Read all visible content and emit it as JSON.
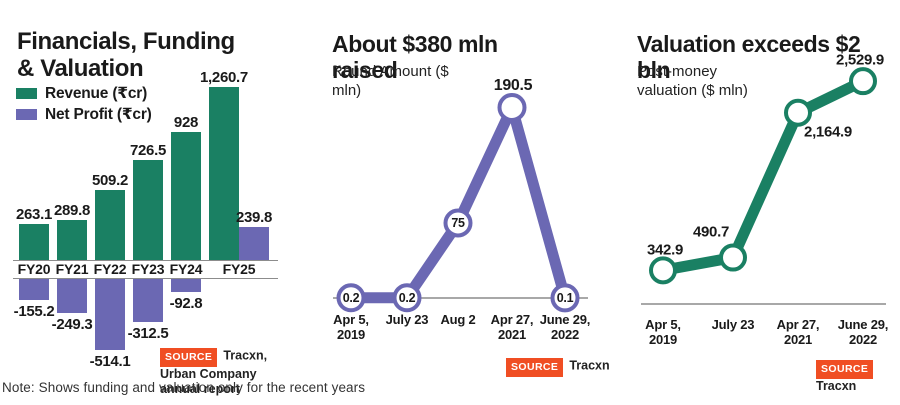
{
  "source_badge_label": "SOURCE",
  "note": "Note: Shows funding and valuation only for the recent years",
  "colors": {
    "revenue_green": "#1a8063",
    "profit_purple": "#6b68b3",
    "source_orange": "#f04e23",
    "axis_gray": "#8c8c8c",
    "text_dark": "#1a1a1a"
  },
  "panels": [
    {
      "title": "Financials, Funding & Valuation",
      "legend": [
        {
          "label": "Revenue (₹cr)",
          "color": "#1a8063"
        },
        {
          "label": "Net Profit (₹cr)",
          "color": "#6b68b3"
        }
      ],
      "source": "Tracxn, Urban Company annual report"
    },
    {
      "title": "About $380 mln raised",
      "subtitle": "Round Amount ($ mln)",
      "source": "Tracxn"
    },
    {
      "title": "Valuation exceeds $2 bln",
      "subtitle": "Post-money valuation ($ mln)",
      "source": "Tracxn"
    }
  ],
  "chart_data": [
    {
      "type": "bar",
      "title": "Financials, Funding & Valuation",
      "categories": [
        "FY20",
        "FY21",
        "FY22",
        "FY23",
        "FY24",
        "FY25"
      ],
      "series": [
        {
          "name": "Revenue (₹cr)",
          "color": "#1a8063",
          "values": [
            263.1,
            289.8,
            509.2,
            726.5,
            928,
            1260.7
          ],
          "labels": [
            "263.1",
            "289.8",
            "509.2",
            "726.5",
            "928",
            "1,260.7"
          ]
        },
        {
          "name": "Net Profit (₹cr)",
          "color": "#6b68b3",
          "values": [
            -155.2,
            -249.3,
            -514.1,
            -312.5,
            -92.8,
            239.8
          ],
          "labels": [
            "-155.2",
            "-249.3",
            "-514.1",
            "-312.5",
            "-92.8",
            "239.8"
          ]
        }
      ],
      "ylabel": "₹cr",
      "grid": false,
      "legend_position": "top-left"
    },
    {
      "type": "line",
      "title": "About $380 mln raised",
      "ylabel": "Round Amount ($ mln)",
      "x": [
        "Apr 5, 2019",
        "July 23",
        "Aug 2",
        "Apr 27, 2021",
        "June 29, 2022"
      ],
      "values": [
        0.2,
        0.2,
        75,
        190.5,
        0.1
      ],
      "labels": [
        "0.2",
        "0.2",
        "75",
        "190.5",
        "0.1"
      ],
      "color": "#6b68b3",
      "marker": "open-circle",
      "ylim": [
        0,
        200
      ],
      "grid": false
    },
    {
      "type": "line",
      "title": "Valuation exceeds $2 bln",
      "ylabel": "Post-money valuation ($ mln)",
      "x": [
        "Apr 5, 2019",
        "July 23",
        "Apr 27, 2021",
        "June 29, 2022"
      ],
      "values": [
        342.9,
        490.7,
        2164.9,
        2529.9
      ],
      "labels": [
        "342.9",
        "490.7",
        "2,164.9",
        "2,529.9"
      ],
      "color": "#1a8063",
      "marker": "open-circle",
      "ylim": [
        0,
        2700
      ],
      "grid": false
    }
  ]
}
